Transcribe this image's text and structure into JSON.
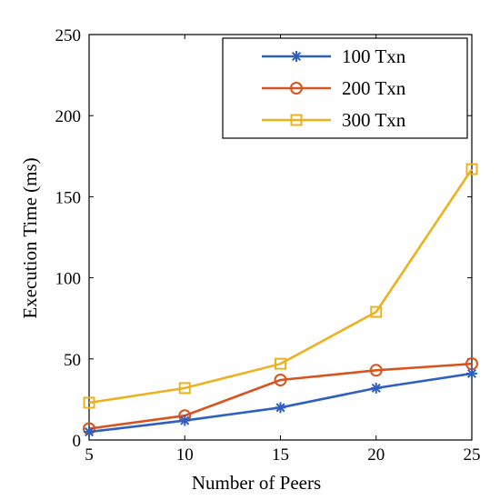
{
  "chart_data": {
    "type": "line",
    "xlabel": "Number of Peers",
    "ylabel": "Execution Time (ms)",
    "x": [
      5,
      10,
      15,
      20,
      25
    ],
    "xlim": [
      5,
      25
    ],
    "ylim": [
      0,
      250
    ],
    "xticks": [
      5,
      10,
      15,
      20,
      25
    ],
    "yticks": [
      0,
      50,
      100,
      150,
      200,
      250
    ],
    "grid": false,
    "legend_position": "top-right",
    "series": [
      {
        "name": "100 Txn",
        "values": [
          5,
          12,
          20,
          32,
          41
        ],
        "color": "#2f5fbf",
        "marker": "asterisk"
      },
      {
        "name": "200 Txn",
        "values": [
          7,
          15,
          37,
          43,
          47
        ],
        "color": "#d9531e",
        "marker": "circle"
      },
      {
        "name": "300 Txn",
        "values": [
          23,
          32,
          47,
          79,
          167
        ],
        "color": "#edb120",
        "marker": "square"
      }
    ]
  }
}
